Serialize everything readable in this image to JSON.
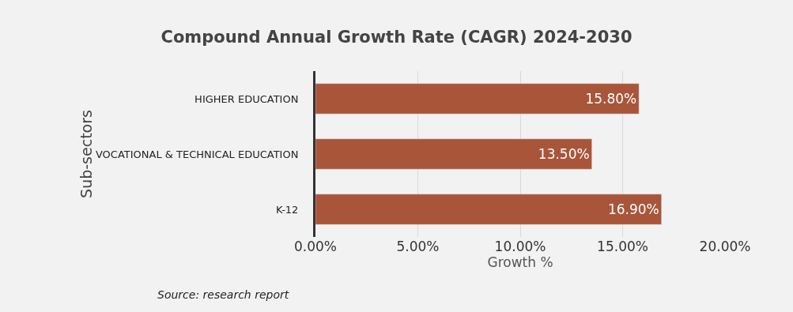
{
  "chart_data": {
    "type": "bar",
    "orientation": "horizontal",
    "title": "Compound Annual Growth Rate (CAGR) 2024-2030",
    "xlabel": "Growth %",
    "ylabel": "Sub-sectors",
    "categories": [
      "HIGHER EDUCATION",
      "VOCATIONAL & TECHNICAL EDUCATION",
      "K-12"
    ],
    "values": [
      15.8,
      13.5,
      16.9
    ],
    "color": "#a9553a",
    "value_labels": [
      "15.80%",
      "13.50%",
      "16.90%"
    ],
    "xlim": [
      0,
      20
    ],
    "xticks": [
      {
        "value": 0,
        "label": "0.00%"
      },
      {
        "value": 5,
        "label": "5.00%"
      },
      {
        "value": 10,
        "label": "10.00%"
      },
      {
        "value": 15,
        "label": "15.00%"
      },
      {
        "value": 20,
        "label": "20.00%"
      }
    ],
    "grid": "x",
    "legend": false,
    "annotations": [
      "Source: research report"
    ]
  }
}
